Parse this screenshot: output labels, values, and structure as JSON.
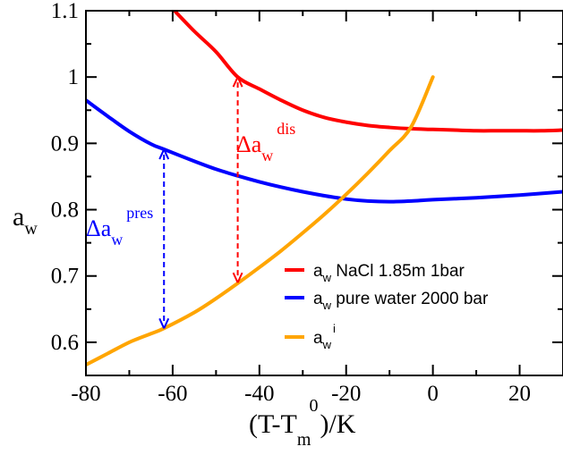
{
  "chart_data": {
    "type": "line",
    "xlim": [
      -80,
      30
    ],
    "ylim": [
      0.55,
      1.1
    ],
    "x_ticks": [
      -80,
      -60,
      -40,
      -20,
      0,
      20
    ],
    "y_ticks": [
      0.6,
      0.7,
      0.8,
      0.9,
      1,
      1.1
    ],
    "x_tick_labels": [
      "-80",
      "-60",
      "-40",
      "-20",
      "0",
      "20"
    ],
    "y_tick_labels": [
      "0.6",
      "0.7",
      "0.8",
      "0.9",
      "1",
      "1.1"
    ],
    "xlabel": {
      "main": "(T-T",
      "sub": "m",
      "sup": "0",
      "tail": ")/K"
    },
    "ylabel": {
      "main": "a",
      "sub": "w"
    },
    "grid": false,
    "legend_position": "bottom-right",
    "series": [
      {
        "name": "a_w NaCl 1.85m 1bar",
        "legend": {
          "main": "a",
          "sub": "w",
          "rest": " NaCl 1.85m 1bar"
        },
        "color": "#ff0000",
        "x": [
          -60,
          -55,
          -50,
          -45,
          -40,
          -35,
          -30,
          -25,
          -20,
          -15,
          -10,
          -5,
          0,
          5,
          10,
          15,
          20,
          25,
          30
        ],
        "y": [
          1.103,
          1.069,
          1.038,
          1.0,
          0.982,
          0.965,
          0.95,
          0.939,
          0.932,
          0.927,
          0.924,
          0.922,
          0.921,
          0.92,
          0.919,
          0.919,
          0.919,
          0.919,
          0.92
        ]
      },
      {
        "name": "a_w pure water 2000 bar",
        "legend": {
          "main": "a",
          "sub": "w",
          "rest": " pure water 2000 bar"
        },
        "color": "#0000ff",
        "x": [
          -80,
          -75,
          -70,
          -65,
          -62,
          -55,
          -50,
          -45,
          -40,
          -35,
          -30,
          -25,
          -20,
          -15,
          -10,
          -5,
          0,
          10,
          20,
          30
        ],
        "y": [
          0.965,
          0.941,
          0.918,
          0.899,
          0.891,
          0.873,
          0.861,
          0.851,
          0.842,
          0.834,
          0.827,
          0.821,
          0.816,
          0.813,
          0.812,
          0.813,
          0.815,
          0.818,
          0.822,
          0.827
        ]
      },
      {
        "name": "a_w^i",
        "legend": {
          "main": "a",
          "sub": "w",
          "sup": "i"
        },
        "color": "#ffa500",
        "x": [
          -80,
          -75,
          -70,
          -65,
          -62,
          -55,
          -50,
          -45,
          -40,
          -35,
          -30,
          -25,
          -20,
          -15,
          -10,
          -5,
          0
        ],
        "y": [
          0.566,
          0.583,
          0.6,
          0.613,
          0.621,
          0.645,
          0.666,
          0.689,
          0.713,
          0.738,
          0.765,
          0.793,
          0.823,
          0.855,
          0.889,
          0.925,
          1.0
        ]
      }
    ],
    "annotations": [
      {
        "name": "delta-aw-dis",
        "text": {
          "main": "Δa",
          "sub": "w",
          "sup": "dis"
        },
        "color": "#ff0000",
        "x": -45,
        "y_from": 0.69,
        "y_to": 1.0
      },
      {
        "name": "delta-aw-pres",
        "text": {
          "main": "Δa",
          "sub": "w",
          "sup": "pres"
        },
        "color": "#0000ff",
        "x": -62,
        "y_from": 0.621,
        "y_to": 0.891
      }
    ]
  }
}
